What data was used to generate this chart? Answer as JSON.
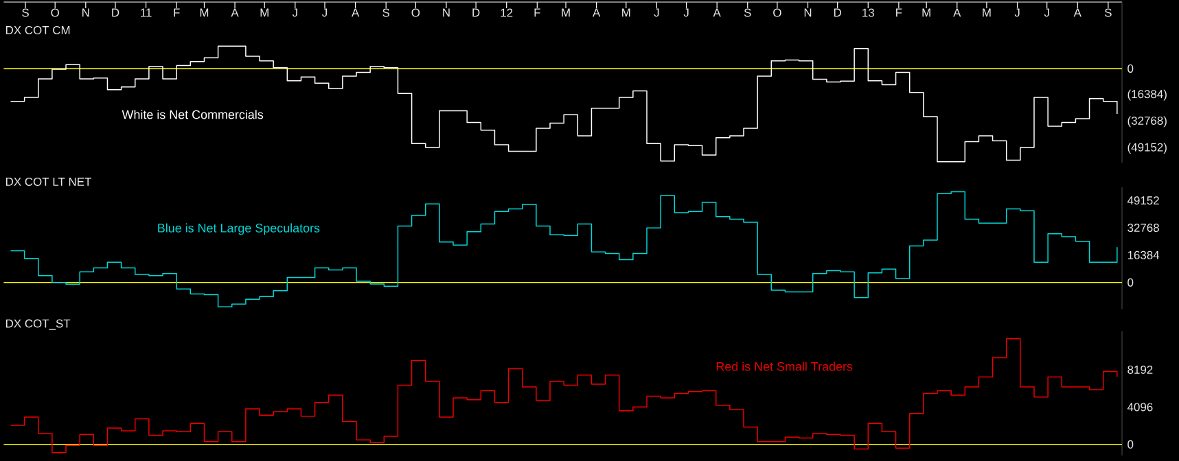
{
  "chart_data": [
    {
      "type": "step",
      "title": "DX COT CM",
      "annotations": [
        "White is Net Commercials"
      ],
      "x": [
        "2010-08-17",
        "2010-08-31",
        "2010-09-14",
        "2010-09-28",
        "2010-10-12",
        "2010-10-26",
        "2010-11-09",
        "2010-11-23",
        "2010-12-07",
        "2010-12-21",
        "2011-01-04",
        "2011-01-18",
        "2011-02-01",
        "2011-02-15",
        "2011-03-01",
        "2011-03-15",
        "2011-03-29",
        "2011-04-12",
        "2011-04-26",
        "2011-05-10",
        "2011-05-24",
        "2011-06-07",
        "2011-06-21",
        "2011-07-05",
        "2011-07-19",
        "2011-08-02",
        "2011-08-16",
        "2011-08-30",
        "2011-09-13",
        "2011-09-27",
        "2011-10-11",
        "2011-10-25",
        "2011-11-08",
        "2011-11-22",
        "2011-12-06",
        "2011-12-20",
        "2012-01-03",
        "2012-01-17",
        "2012-01-31",
        "2012-02-14",
        "2012-02-28",
        "2012-03-13",
        "2012-03-27",
        "2012-04-10",
        "2012-04-24",
        "2012-05-08",
        "2012-05-22",
        "2012-06-05",
        "2012-06-19",
        "2012-07-03",
        "2012-07-17",
        "2012-07-31",
        "2012-08-14",
        "2012-08-28",
        "2012-09-11",
        "2012-09-25",
        "2012-10-09",
        "2012-10-23",
        "2012-11-06",
        "2012-11-20",
        "2012-12-04",
        "2012-12-18",
        "2013-01-01",
        "2013-01-15",
        "2013-01-29",
        "2013-02-12",
        "2013-02-26",
        "2013-03-12",
        "2013-03-26",
        "2013-04-09",
        "2013-04-23",
        "2013-05-07",
        "2013-05-21",
        "2013-06-04",
        "2013-06-18",
        "2013-07-02",
        "2013-07-16",
        "2013-07-30",
        "2013-08-13",
        "2013-08-27",
        "2013-09-10"
      ],
      "series": [
        {
          "color": "#ffffff",
          "values": [
            -20200,
            -17800,
            -6400,
            -500,
            2400,
            -6400,
            -5900,
            -13000,
            -11400,
            -6400,
            1200,
            -6400,
            1900,
            4300,
            6600,
            13800,
            13800,
            7600,
            4700,
            500,
            -7600,
            -5200,
            -9000,
            -12300,
            -4700,
            -2400,
            1200,
            500,
            -15400,
            -46300,
            -48700,
            -26100,
            -26100,
            -33200,
            -38000,
            -47000,
            -51000,
            -51000,
            -36800,
            -33700,
            -28500,
            -41500,
            -24500,
            -24500,
            -17800,
            -13800,
            -46300,
            -57000,
            -47000,
            -47500,
            -53400,
            -42700,
            -41500,
            -36800,
            -4700,
            4700,
            5200,
            4700,
            -6600,
            -8300,
            -7800,
            12300,
            -7600,
            -10000,
            -2400,
            -14700,
            -29700,
            -57500,
            -57500,
            -45100,
            -41500,
            -44600,
            -56500,
            -48700,
            -17800,
            -35600,
            -33200,
            -30900,
            -18500,
            -20200,
            -28000
          ]
        }
      ],
      "xlim": [
        "2010-08-10",
        "2013-09-15"
      ],
      "ylim": [
        -58000,
        41000
      ],
      "xticks": [
        {
          "value": "2010-09-01",
          "label": "S"
        },
        {
          "value": "2010-10-01",
          "label": "O"
        },
        {
          "value": "2010-11-01",
          "label": "N"
        },
        {
          "value": "2010-12-01",
          "label": "D"
        },
        {
          "value": "2011-01-01",
          "label": "11"
        },
        {
          "value": "2011-02-01",
          "label": "F"
        },
        {
          "value": "2011-03-01",
          "label": "M"
        },
        {
          "value": "2011-04-01",
          "label": "A"
        },
        {
          "value": "2011-05-01",
          "label": "M"
        },
        {
          "value": "2011-06-01",
          "label": "J"
        },
        {
          "value": "2011-07-01",
          "label": "J"
        },
        {
          "value": "2011-08-01",
          "label": "A"
        },
        {
          "value": "2011-09-01",
          "label": "S"
        },
        {
          "value": "2011-10-01",
          "label": "O"
        },
        {
          "value": "2011-11-01",
          "label": "N"
        },
        {
          "value": "2011-12-01",
          "label": "D"
        },
        {
          "value": "2012-01-01",
          "label": "12"
        },
        {
          "value": "2012-02-01",
          "label": "F"
        },
        {
          "value": "2012-03-01",
          "label": "M"
        },
        {
          "value": "2012-04-01",
          "label": "A"
        },
        {
          "value": "2012-05-01",
          "label": "M"
        },
        {
          "value": "2012-06-01",
          "label": "J"
        },
        {
          "value": "2012-07-01",
          "label": "J"
        },
        {
          "value": "2012-08-01",
          "label": "A"
        },
        {
          "value": "2012-09-01",
          "label": "S"
        },
        {
          "value": "2012-10-01",
          "label": "O"
        },
        {
          "value": "2012-11-01",
          "label": "N"
        },
        {
          "value": "2012-12-01",
          "label": "D"
        },
        {
          "value": "2013-01-01",
          "label": "13"
        },
        {
          "value": "2013-02-01",
          "label": "F"
        },
        {
          "value": "2013-03-01",
          "label": "M"
        },
        {
          "value": "2013-04-01",
          "label": "A"
        },
        {
          "value": "2013-05-01",
          "label": "M"
        },
        {
          "value": "2013-06-01",
          "label": "J"
        },
        {
          "value": "2013-07-01",
          "label": "J"
        },
        {
          "value": "2013-08-01",
          "label": "A"
        },
        {
          "value": "2013-09-01",
          "label": "S"
        }
      ],
      "yticks": [
        0,
        {
          "value": -16384,
          "label": "(16384)"
        },
        {
          "value": -32768,
          "label": "(32768)"
        },
        {
          "value": -49152,
          "label": "(49152)"
        }
      ],
      "ref_lines": [
        {
          "axis": "y",
          "value": 0,
          "color": "#ffff00"
        }
      ]
    },
    {
      "type": "step",
      "title": "DX COT LT NET",
      "annotations": [
        "Blue is Net Large Speculators"
      ],
      "x": [
        "2010-08-17",
        "2010-08-31",
        "2010-09-14",
        "2010-09-28",
        "2010-10-12",
        "2010-10-26",
        "2010-11-09",
        "2010-11-23",
        "2010-12-07",
        "2010-12-21",
        "2011-01-04",
        "2011-01-18",
        "2011-02-01",
        "2011-02-15",
        "2011-03-01",
        "2011-03-15",
        "2011-03-29",
        "2011-04-12",
        "2011-04-26",
        "2011-05-10",
        "2011-05-24",
        "2011-06-07",
        "2011-06-21",
        "2011-07-05",
        "2011-07-19",
        "2011-08-02",
        "2011-08-16",
        "2011-08-30",
        "2011-09-13",
        "2011-09-27",
        "2011-10-11",
        "2011-10-25",
        "2011-11-08",
        "2011-11-22",
        "2011-12-06",
        "2011-12-20",
        "2012-01-03",
        "2012-01-17",
        "2012-01-31",
        "2012-02-14",
        "2012-02-28",
        "2012-03-13",
        "2012-03-27",
        "2012-04-10",
        "2012-04-24",
        "2012-05-08",
        "2012-05-22",
        "2012-06-05",
        "2012-06-19",
        "2012-07-03",
        "2012-07-17",
        "2012-07-31",
        "2012-08-14",
        "2012-08-28",
        "2012-09-11",
        "2012-09-25",
        "2012-10-09",
        "2012-10-23",
        "2012-11-06",
        "2012-11-20",
        "2012-12-04",
        "2012-12-18",
        "2013-01-01",
        "2013-01-15",
        "2013-01-29",
        "2013-02-12",
        "2013-02-26",
        "2013-03-12",
        "2013-03-26",
        "2013-04-09",
        "2013-04-23",
        "2013-05-07",
        "2013-05-21",
        "2013-06-04",
        "2013-06-18",
        "2013-07-02",
        "2013-07-16",
        "2013-07-30",
        "2013-08-13",
        "2013-08-27",
        "2013-09-10"
      ],
      "series": [
        {
          "color": "#00d8d8",
          "values": [
            19000,
            14400,
            4100,
            0,
            -1100,
            6400,
            8700,
            12100,
            8700,
            4800,
            4100,
            5300,
            -3900,
            -6900,
            -7300,
            -14600,
            -13000,
            -10100,
            -8500,
            -5000,
            3000,
            3000,
            8700,
            7500,
            8700,
            700,
            -900,
            -2300,
            33800,
            40200,
            47100,
            24200,
            22400,
            30400,
            35000,
            42500,
            44100,
            46800,
            33800,
            28600,
            28100,
            35000,
            18300,
            17400,
            13700,
            17400,
            32700,
            52100,
            41800,
            42500,
            48000,
            39500,
            37900,
            36100,
            4800,
            -4600,
            -5700,
            -5700,
            5300,
            7100,
            6400,
            -9100,
            5700,
            8000,
            2300,
            21900,
            25400,
            53200,
            54400,
            37900,
            35600,
            35600,
            44100,
            43000,
            12100,
            29200,
            27400,
            24700,
            12100,
            12100,
            21200
          ]
        }
      ],
      "xlim": [
        "2010-08-10",
        "2013-09-15"
      ],
      "ylim": [
        -16000,
        57000
      ],
      "yticks": [
        0,
        16384,
        32768,
        49152
      ],
      "tick_labels": "y",
      "ref_lines": [
        {
          "axis": "y",
          "value": 0,
          "color": "#ffff00"
        }
      ]
    },
    {
      "type": "step",
      "title": "DX COT_ST",
      "annotations": [
        "Red is Net Small Traders"
      ],
      "x": [
        "2010-08-17",
        "2010-08-31",
        "2010-09-14",
        "2010-09-28",
        "2010-10-12",
        "2010-10-26",
        "2010-11-09",
        "2010-11-23",
        "2010-12-07",
        "2010-12-21",
        "2011-01-04",
        "2011-01-18",
        "2011-02-01",
        "2011-02-15",
        "2011-03-01",
        "2011-03-15",
        "2011-03-29",
        "2011-04-12",
        "2011-04-26",
        "2011-05-10",
        "2011-05-24",
        "2011-06-07",
        "2011-06-21",
        "2011-07-05",
        "2011-07-19",
        "2011-08-02",
        "2011-08-16",
        "2011-08-30",
        "2011-09-13",
        "2011-09-27",
        "2011-10-11",
        "2011-10-25",
        "2011-11-08",
        "2011-11-22",
        "2011-12-06",
        "2011-12-20",
        "2012-01-03",
        "2012-01-17",
        "2012-01-31",
        "2012-02-14",
        "2012-02-28",
        "2012-03-13",
        "2012-03-27",
        "2012-04-10",
        "2012-04-24",
        "2012-05-08",
        "2012-05-22",
        "2012-06-05",
        "2012-06-19",
        "2012-07-03",
        "2012-07-17",
        "2012-07-31",
        "2012-08-14",
        "2012-08-28",
        "2012-09-11",
        "2012-09-25",
        "2012-10-09",
        "2012-10-23",
        "2012-11-06",
        "2012-11-20",
        "2012-12-04",
        "2012-12-18",
        "2013-01-01",
        "2013-01-15",
        "2013-01-29",
        "2013-02-12",
        "2013-02-26",
        "2013-03-12",
        "2013-03-26",
        "2013-04-09",
        "2013-04-23",
        "2013-05-07",
        "2013-05-21",
        "2013-06-04",
        "2013-06-18",
        "2013-07-02",
        "2013-07-16",
        "2013-07-30",
        "2013-08-13",
        "2013-08-27",
        "2013-09-10"
      ],
      "series": [
        {
          "color": "#ee0000",
          "values": [
            2100,
            3000,
            1200,
            -900,
            -100,
            1100,
            -100,
            1800,
            1500,
            2800,
            1000,
            1500,
            1400,
            2300,
            300,
            1400,
            300,
            3900,
            3200,
            3600,
            3900,
            3100,
            4600,
            5400,
            2500,
            500,
            200,
            900,
            6500,
            9200,
            6900,
            3000,
            5100,
            4900,
            5900,
            4600,
            8300,
            6300,
            4800,
            6900,
            6500,
            7600,
            6600,
            7600,
            3700,
            4100,
            5300,
            5100,
            5600,
            5800,
            5900,
            4300,
            3800,
            1900,
            300,
            300,
            800,
            700,
            1200,
            1100,
            1000,
            -500,
            2300,
            1400,
            -400,
            3400,
            5600,
            5900,
            5400,
            6300,
            7400,
            9500,
            11600,
            6300,
            5200,
            7400,
            6300,
            6300,
            6000,
            8000,
            7400
          ]
        }
      ],
      "xlim": [
        "2010-08-10",
        "2013-09-15"
      ],
      "ylim": [
        -1200,
        12400
      ],
      "yticks": [
        0,
        4096,
        8192
      ],
      "tick_labels": "y",
      "ref_lines": [
        {
          "axis": "y",
          "value": 0,
          "color": "#ffff00"
        }
      ]
    }
  ]
}
